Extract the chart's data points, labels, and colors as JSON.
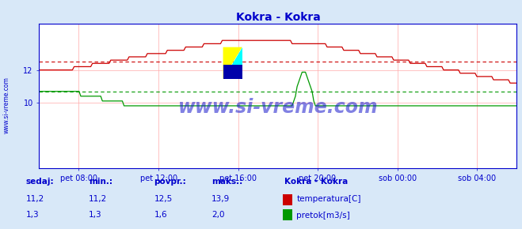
{
  "title": "Kokra - Kokra",
  "title_color": "#0000cc",
  "bg_color": "#d8e8f8",
  "plot_bg_color": "#ffffff",
  "watermark": "www.si-vreme.com",
  "x_ticks": [
    "pet 08:00",
    "pet 12:00",
    "pet 16:00",
    "pet 20:00",
    "sob 00:00",
    "sob 04:00"
  ],
  "x_tick_positions": [
    0.083,
    0.25,
    0.417,
    0.583,
    0.75,
    0.917
  ],
  "ylim": [
    6.0,
    14.8
  ],
  "y_ticks": [
    10,
    12
  ],
  "temp_min": 6.0,
  "temp_max": 14.8,
  "flow_min": 0.0,
  "flow_max": 3.0,
  "avg_temp": 12.5,
  "avg_flow": 1.6,
  "temp_color": "#cc0000",
  "flow_color": "#009900",
  "avg_temp_color": "#cc0000",
  "avg_flow_color": "#009900",
  "grid_color": "#ffaaaa",
  "axis_color": "#0000cc",
  "tick_label_color": "#0000cc",
  "sidebar_text": "www.si-vreme.com",
  "sidebar_color": "#0000cc",
  "table_headers": [
    "sedaj:",
    "min.:",
    "povpr.:",
    "maks.:"
  ],
  "table_values_temp": [
    "11,2",
    "11,2",
    "12,5",
    "13,9"
  ],
  "table_values_flow": [
    "1,3",
    "1,3",
    "1,6",
    "2,0"
  ],
  "legend_title": "Kokra - Kokra",
  "legend_items": [
    "temperatura[C]",
    "pretok[m3/s]"
  ],
  "legend_colors": [
    "#cc0000",
    "#009900"
  ],
  "table_color": "#0000cc"
}
